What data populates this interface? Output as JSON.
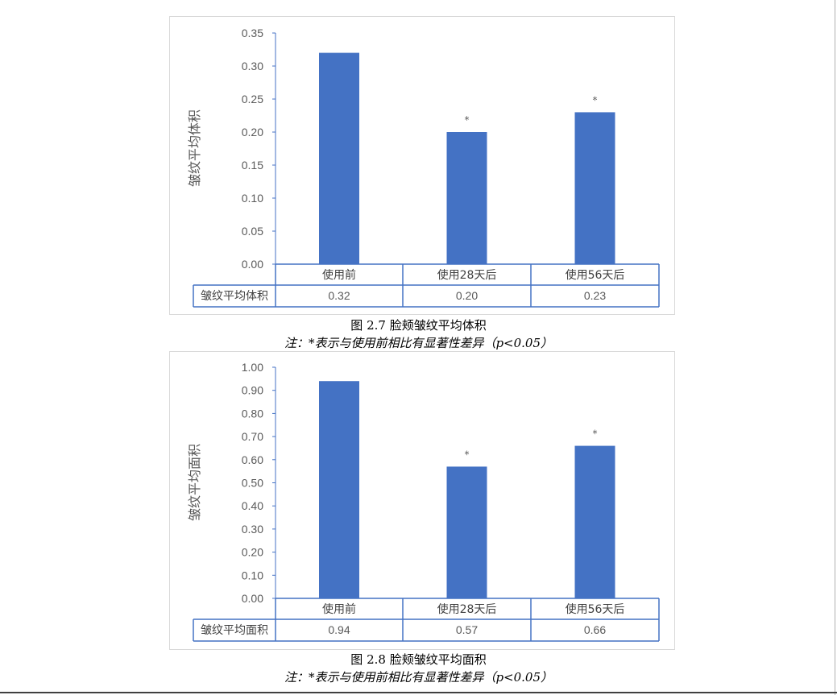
{
  "chart_data": [
    {
      "type": "bar",
      "categories": [
        "使用前",
        "使用28天后",
        "使用56天后"
      ],
      "series": [
        {
          "name": "皱纹平均体积",
          "values": [
            0.32,
            0.2,
            0.23
          ],
          "value_labels": [
            "0.32",
            "0.20",
            "0.23"
          ]
        }
      ],
      "significance_marks": [
        "",
        "*",
        "*"
      ],
      "ylabel": "皱纹平均体积",
      "ylim": [
        0,
        0.35
      ],
      "yticks": [
        0.0,
        0.05,
        0.1,
        0.15,
        0.2,
        0.25,
        0.3,
        0.35
      ],
      "ytick_labels": [
        "0.00",
        "0.05",
        "0.10",
        "0.15",
        "0.20",
        "0.25",
        "0.30",
        "0.35"
      ],
      "grid": false,
      "data_table": true,
      "bar_color": "#4472C4",
      "caption": "图 2.7 脸颊皱纹平均体积",
      "note": "注：*表示与使用前相比有显著性差异（p<0.05）"
    },
    {
      "type": "bar",
      "categories": [
        "使用前",
        "使用28天后",
        "使用56天后"
      ],
      "series": [
        {
          "name": "皱纹平均面积",
          "values": [
            0.94,
            0.57,
            0.66
          ],
          "value_labels": [
            "0.94",
            "0.57",
            "0.66"
          ]
        }
      ],
      "significance_marks": [
        "",
        "*",
        "*"
      ],
      "ylabel": "皱纹平均面积",
      "ylim": [
        0,
        1.0
      ],
      "yticks": [
        0.0,
        0.1,
        0.2,
        0.3,
        0.4,
        0.5,
        0.6,
        0.7,
        0.8,
        0.9,
        1.0
      ],
      "ytick_labels": [
        "0.00",
        "0.10",
        "0.20",
        "0.30",
        "0.40",
        "0.50",
        "0.60",
        "0.70",
        "0.80",
        "0.90",
        "1.00"
      ],
      "grid": false,
      "data_table": true,
      "bar_color": "#4472C4",
      "caption": "图 2.8 脸颊皱纹平均面积",
      "note": "注：*表示与使用前相比有显著性差异（p<0.05）"
    }
  ],
  "colors": {
    "bar": "#4472C4",
    "table_border": "#4472C4",
    "axis": "#4472C4",
    "chart_border": "#d9d9d9"
  }
}
